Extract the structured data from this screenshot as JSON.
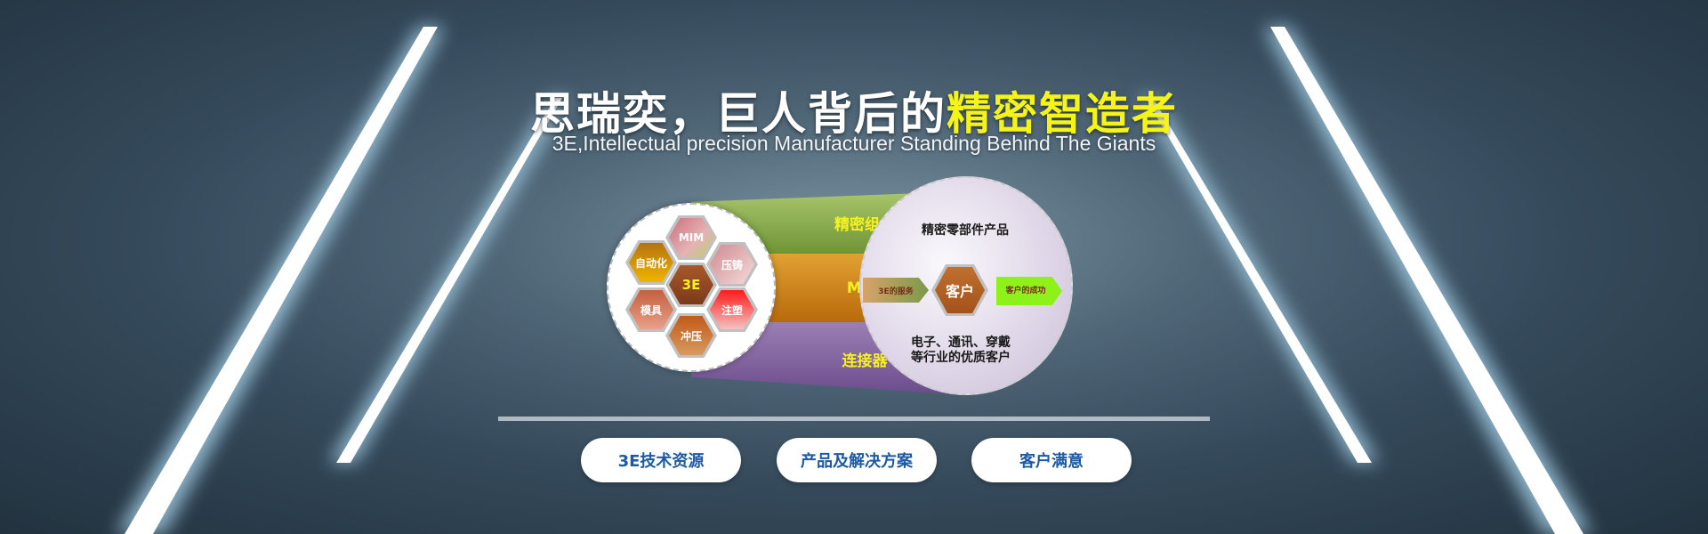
{
  "hero": {
    "title_white": "思瑞奕，巨人背后的",
    "title_highlight": "精密智造者",
    "subtitle": "3E,Intellectual precision Manufacturer Standing Behind The Giants",
    "highlight_color": "#f4f41a"
  },
  "diagram": {
    "hexagons": {
      "mim": "MIM",
      "automation": "自动化",
      "die_casting": "压铸",
      "center": "3E",
      "mold": "模具",
      "injection": "注塑",
      "stamping": "冲压"
    },
    "bands": [
      "精密组件",
      "MIM",
      "连接器"
    ],
    "right": {
      "heading": "精密零部件产品",
      "service": "3E的服务",
      "customer": "客户",
      "success": "客户的成功",
      "footer_line1": "电子、通讯、穿戴",
      "footer_line2": "等行业的优质客户"
    }
  },
  "buttons": [
    "3E技术资源",
    "产品及解决方案",
    "客户满意"
  ]
}
